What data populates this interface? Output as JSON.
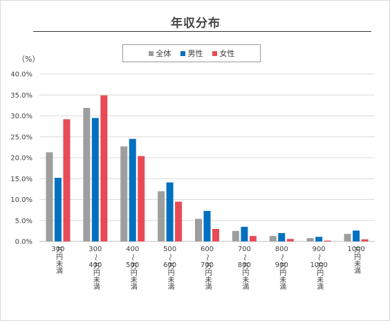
{
  "chart_data": {
    "type": "bar",
    "title": "年収分布",
    "unit_label": "（%）",
    "ylim": [
      0,
      40
    ],
    "yticks": [
      "0.0%",
      "5.0%",
      "10.0%",
      "15.0%",
      "20.0%",
      "25.0%",
      "30.0%",
      "35.0%",
      "40.0%"
    ],
    "grid": true,
    "legend_position": "top",
    "categories": [
      [
        "300",
        "万円未満"
      ],
      [
        "300",
        "〜",
        "400",
        "万円未満"
      ],
      [
        "400",
        "〜",
        "500",
        "万円未満"
      ],
      [
        "500",
        "〜",
        "600",
        "万円未満"
      ],
      [
        "600",
        "〜",
        "700",
        "万円未満"
      ],
      [
        "700",
        "〜",
        "800",
        "万円未満"
      ],
      [
        "800",
        "〜",
        "900",
        "万円未満"
      ],
      [
        "900",
        "〜",
        "1000",
        "万円未満"
      ],
      [
        "1000",
        "万円未満"
      ]
    ],
    "series": [
      {
        "name": "全体",
        "color": "#9e9e9e",
        "values": [
          21.3,
          31.9,
          22.7,
          12.0,
          5.4,
          2.5,
          1.3,
          0.8,
          1.8
        ]
      },
      {
        "name": "男性",
        "color": "#0070c0",
        "values": [
          15.2,
          29.5,
          24.5,
          14.1,
          7.3,
          3.5,
          2.0,
          1.1,
          2.6
        ]
      },
      {
        "name": "女性",
        "color": "#e84b55",
        "values": [
          29.2,
          34.9,
          20.4,
          9.5,
          3.0,
          1.3,
          0.6,
          0.2,
          0.5
        ]
      }
    ]
  }
}
